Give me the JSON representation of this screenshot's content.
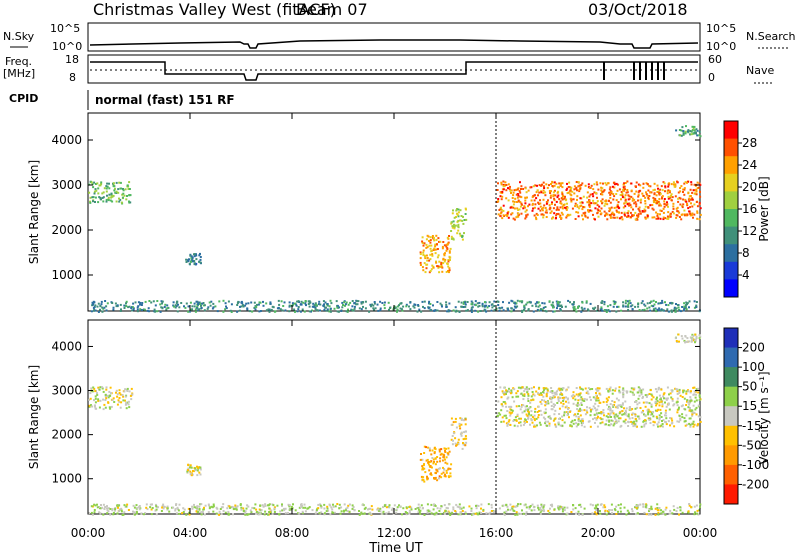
{
  "header": {
    "title": "Christmas Valley West (fitACF)",
    "beam": "Beam 07",
    "date": "03/Oct/2018"
  },
  "status_panel": {
    "nsky_label": "N.Sky",
    "nsearch_label": "N.Search",
    "freq_label_1": "Freq.",
    "freq_label_2": "[MHz]",
    "nave_label": "Nave",
    "cpid_label": "CPID",
    "left_ticks_top": [
      "10^5",
      "10^0"
    ],
    "right_ticks_top": [
      "10^5",
      "10^0"
    ],
    "freq_ticks": [
      "18",
      "8"
    ],
    "nave_ticks": [
      "60",
      "0"
    ],
    "cpid_text": "normal (fast) 151 RF"
  },
  "power_colorbar": {
    "label": "Power [dB]",
    "ticks": [
      "28",
      "24",
      "20",
      "16",
      "12",
      "8",
      "4"
    ],
    "colors": [
      "#ff0000",
      "#ff5000",
      "#ffa000",
      "#e6d020",
      "#a0d040",
      "#50b860",
      "#40907a",
      "#2c6fa0",
      "#1a3ad8",
      "#0000ff"
    ]
  },
  "velocity_colorbar": {
    "label": "Velocity [m s⁻¹]",
    "ticks": [
      "200",
      "100",
      "50",
      "15",
      "-15",
      "-50",
      "-100",
      "-200"
    ],
    "colors": [
      "#1f2fb8",
      "#2f6ab0",
      "#3f8a60",
      "#8ed04a",
      "#c8c8c0",
      "#ffc000",
      "#ff9a00",
      "#ff6000",
      "#ff1a00"
    ]
  },
  "chart_data": [
    {
      "type": "heatmap",
      "name": "power",
      "ylabel": "Slant Range [km]",
      "yticks": [
        "4000",
        "3000",
        "2000",
        "1000"
      ],
      "ylim": [
        200,
        4600
      ],
      "xlim": [
        0,
        24
      ],
      "clim": [
        0,
        30
      ],
      "regions": [
        {
          "t0": 0.0,
          "t1": 1.7,
          "r0": 2600,
          "r1": 3100,
          "v": 14
        },
        {
          "t0": 3.8,
          "t1": 4.4,
          "r0": 1250,
          "r1": 1500,
          "v": 9
        },
        {
          "t0": 13.0,
          "t1": 14.2,
          "r0": 1050,
          "r1": 1900,
          "v": 22
        },
        {
          "t0": 14.2,
          "t1": 14.8,
          "r0": 1800,
          "r1": 2500,
          "v": 17
        },
        {
          "t0": 16.0,
          "t1": 24.0,
          "r0": 2250,
          "r1": 3100,
          "v": 24
        },
        {
          "t0": 23.0,
          "t1": 24.0,
          "r0": 4100,
          "r1": 4350,
          "v": 12
        },
        {
          "t0": 0.0,
          "t1": 24.0,
          "r0": 200,
          "r1": 450,
          "v": 10
        }
      ]
    },
    {
      "type": "heatmap",
      "name": "velocity",
      "ylabel": "Slant Range [km]",
      "yticks": [
        "4000",
        "3000",
        "2000",
        "1000"
      ],
      "ylim": [
        200,
        4600
      ],
      "xlim": [
        0,
        24
      ],
      "clim": [
        -250,
        250
      ],
      "regions": [
        {
          "t0": 0.0,
          "t1": 1.7,
          "r0": 2600,
          "r1": 3100,
          "v": 0
        },
        {
          "t0": 3.8,
          "t1": 4.4,
          "r0": 1100,
          "r1": 1350,
          "v": 0
        },
        {
          "t0": 13.0,
          "t1": 14.2,
          "r0": 950,
          "r1": 1750,
          "v": -80
        },
        {
          "t0": 14.2,
          "t1": 14.8,
          "r0": 1700,
          "r1": 2400,
          "v": -30
        },
        {
          "t0": 16.0,
          "t1": 24.0,
          "r0": 2200,
          "r1": 3100,
          "v": 0
        },
        {
          "t0": 23.0,
          "t1": 24.0,
          "r0": 4100,
          "r1": 4300,
          "v": 0
        },
        {
          "t0": 0.0,
          "t1": 24.0,
          "r0": 200,
          "r1": 450,
          "v": 20
        }
      ]
    }
  ],
  "x_axis": {
    "ticks": [
      "00:00",
      "04:00",
      "08:00",
      "12:00",
      "16:00",
      "20:00",
      "00:00"
    ],
    "label": "Time UT"
  }
}
